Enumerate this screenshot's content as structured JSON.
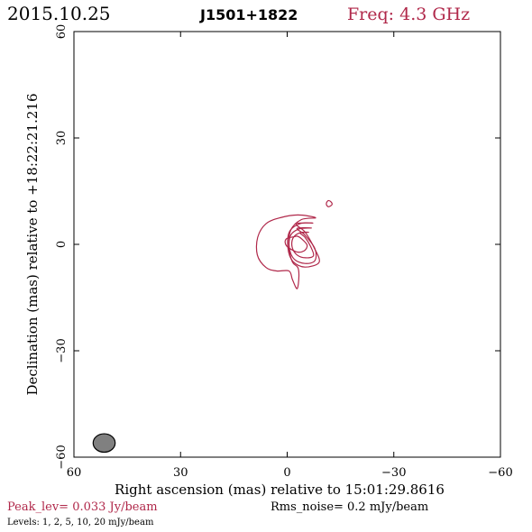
{
  "header": {
    "date": "2015.10.25",
    "source": "J1501+1822",
    "freq": "Freq: 4.3 GHz"
  },
  "footer": {
    "peak": "Peak_lev=  0.033 Jy/beam",
    "rms": "Rms_noise=  0.2 mJy/beam",
    "levels": "Levels:   1,   2,   5,  10,  20 mJy/beam"
  },
  "colors": {
    "contour": "#b0284a",
    "beam_fill": "#808080",
    "axes": "#000000"
  },
  "chart_data": {
    "type": "contour",
    "title": "J1501+1822",
    "xlabel": "Right ascension (mas) relative to 15:01:29.8616",
    "ylabel": "Declination (mas) relative to +18:22:21.216",
    "xlim": [
      60,
      -60
    ],
    "ylim": [
      -60,
      60
    ],
    "xticks": [
      60,
      30,
      0,
      -30,
      -60
    ],
    "yticks": [
      -60,
      -30,
      0,
      30,
      60
    ],
    "xtick_labels": [
      "60",
      "30",
      "0",
      "−30",
      "−60"
    ],
    "ytick_labels": [
      "−60",
      "−30",
      "0",
      "30",
      "60"
    ],
    "levels_mJy_per_beam": [
      1,
      2,
      5,
      10,
      20
    ],
    "peak_Jy_per_beam": 0.033,
    "rms_noise_mJy_per_beam": 0.2,
    "beam": {
      "x": 51.5,
      "y": -56,
      "major_mas": 6.2,
      "minor_mas": 5.2
    },
    "contours": [
      {
        "level": 1,
        "points": [
          [
            -8,
            7.5
          ],
          [
            -4,
            7
          ],
          [
            -1,
            4
          ],
          [
            -0.5,
            -1
          ],
          [
            -1.5,
            -5
          ],
          [
            -3,
            -6.5
          ],
          [
            -3.3,
            -9
          ],
          [
            -2.8,
            -12.5
          ],
          [
            -1.5,
            -10
          ],
          [
            -0.5,
            -7.5
          ],
          [
            3,
            -7.5
          ],
          [
            6,
            -6.5
          ],
          [
            8.4,
            -3
          ],
          [
            8.3,
            2
          ],
          [
            6,
            5.8
          ],
          [
            2,
            7.5
          ],
          [
            -3,
            8.3
          ]
        ]
      },
      {
        "level": 2,
        "points": [
          [
            -7.2,
            6
          ],
          [
            -3.5,
            5.8
          ],
          [
            -0.6,
            3.5
          ],
          [
            -0.2,
            -1
          ],
          [
            -1.6,
            -4.8
          ],
          [
            -5,
            -6.4
          ],
          [
            -9,
            -5
          ],
          [
            -7.5,
            -0.8
          ],
          [
            -5,
            3.5
          ],
          [
            -2.5,
            5.8
          ]
        ]
      },
      {
        "level": 5,
        "points": [
          [
            -6.8,
            4.6
          ],
          [
            -3.5,
            4.4
          ],
          [
            -1,
            2.6
          ],
          [
            -0.6,
            -1
          ],
          [
            -2,
            -4.2
          ],
          [
            -5,
            -5.4
          ],
          [
            -7.8,
            -4.6
          ],
          [
            -7.8,
            -1.2
          ],
          [
            -5,
            2.6
          ],
          [
            -2.8,
            4.5
          ]
        ]
      },
      {
        "level": 10,
        "points": [
          [
            -6,
            3.4
          ],
          [
            -3.4,
            3.2
          ],
          [
            -1.6,
            1.7
          ],
          [
            -1.4,
            -0.8
          ],
          [
            -2.8,
            -3
          ],
          [
            -5.2,
            -3.8
          ],
          [
            -7.4,
            -3.2
          ],
          [
            -6.6,
            -0.6
          ],
          [
            -5,
            2
          ],
          [
            -3.6,
            3.3
          ]
        ]
      },
      {
        "level": 20,
        "points": [
          [
            -2.2,
            2.2
          ],
          [
            0.3,
            1.5
          ],
          [
            0.2,
            -0.4
          ],
          [
            -2.6,
            -2.1
          ],
          [
            -4.8,
            -1.8
          ],
          [
            -5.6,
            -0.2
          ],
          [
            -4,
            1.6
          ],
          [
            -2.9,
            2.3
          ]
        ]
      },
      {
        "level": 1,
        "points": [
          [
            -11.5,
            12.3
          ],
          [
            -12.3,
            12
          ],
          [
            -12.6,
            11.2
          ],
          [
            -11.6,
            10.6
          ],
          [
            -11,
            11.4
          ]
        ]
      }
    ]
  }
}
